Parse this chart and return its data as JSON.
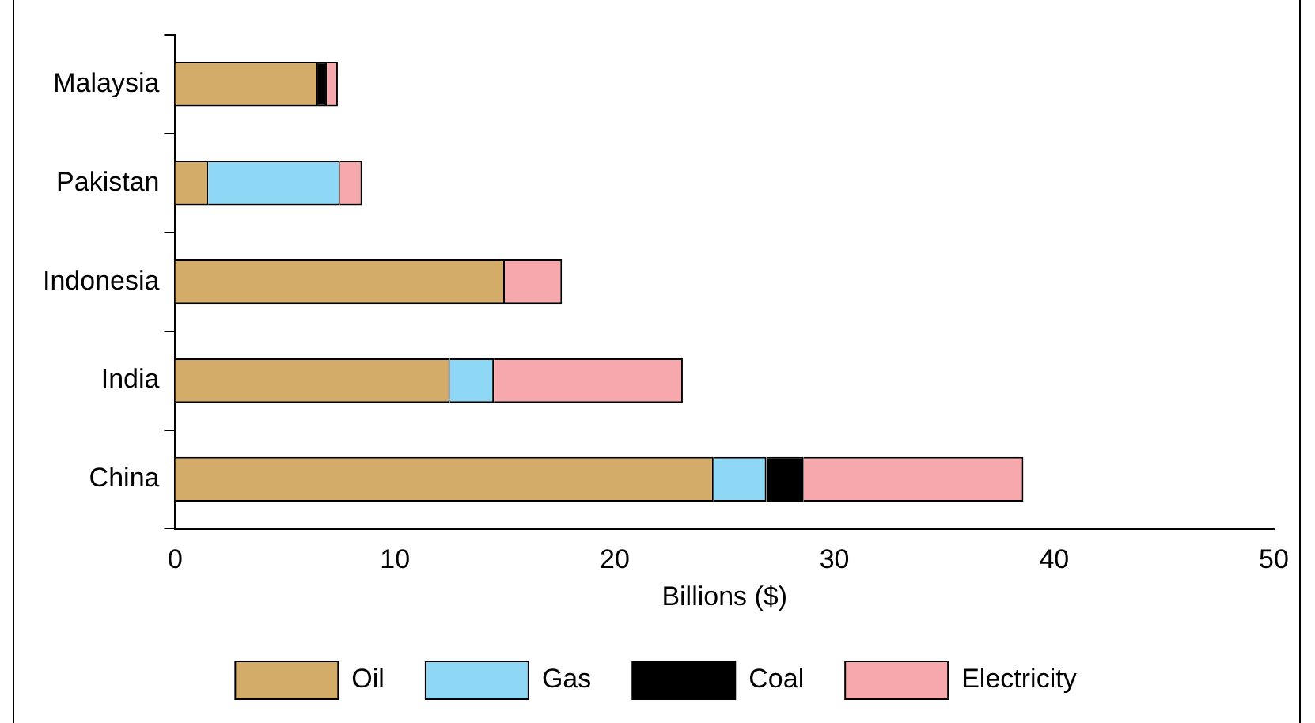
{
  "chart_data": {
    "type": "bar",
    "orientation": "horizontal",
    "stacked": true,
    "xlabel": "Billions ($)",
    "categories": [
      "Malaysia",
      "Pakistan",
      "Indonesia",
      "India",
      "China"
    ],
    "series": [
      {
        "name": "Oil",
        "color": "#d4ac6a",
        "values": [
          6.5,
          1.5,
          15,
          12.5,
          24.5
        ]
      },
      {
        "name": "Gas",
        "color": "#8ed8f5",
        "values": [
          null,
          6,
          null,
          2,
          2.4
        ]
      },
      {
        "name": "Coal",
        "color": "#000000",
        "values": [
          0.4,
          null,
          null,
          null,
          1.7
        ]
      },
      {
        "name": "Electricity",
        "color": "#f6a8ad",
        "values": [
          0.5,
          1,
          2.6,
          8.6,
          10
        ]
      }
    ],
    "xlim": [
      0,
      50
    ],
    "xticks": [
      0,
      10,
      20,
      30,
      40,
      50
    ],
    "grid": false,
    "legend": "bottom"
  }
}
